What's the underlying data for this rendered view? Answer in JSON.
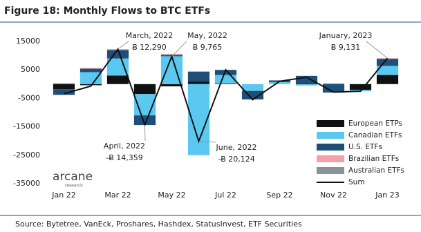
{
  "chart_data": {
    "type": "stacked-bar-line",
    "title": "Figure 18: Monthly Flows to BTC ETFs",
    "source": "Source: Bytetree, VanEck, Proshares, Hashdex, StatusInvest, ETF Securities",
    "logo": {
      "name": "arcane",
      "subtitle": "research"
    },
    "categories": [
      "Jan 22",
      null,
      "Mar 22",
      null,
      "May 22",
      null,
      "Jul 22",
      null,
      "Sep 22",
      null,
      "Nov 22",
      null,
      "Jan 23"
    ],
    "ylim": [
      -36460,
      18640
    ],
    "yticks": [
      -35000,
      -25000,
      -15000,
      -5000,
      5000,
      15000
    ],
    "series": [
      {
        "name": "European ETPs",
        "color": "#111111",
        "values": [
          -1800,
          -400,
          3000,
          -3500,
          -800,
          900,
          200,
          0,
          0,
          400,
          0,
          -2000,
          3200
        ]
      },
      {
        "name": "Canadian ETFs",
        "color": "#5bc8f0",
        "values": [
          400,
          4200,
          6000,
          -7500,
          9800,
          -25000,
          3000,
          -2400,
          700,
          -500,
          300,
          -500,
          3200
        ]
      },
      {
        "name": "U.S. ETFs",
        "color": "#1f4e79",
        "values": [
          -2000,
          1200,
          3000,
          -3400,
          400,
          3500,
          1800,
          -3000,
          600,
          2500,
          -3000,
          0,
          2500
        ]
      },
      {
        "name": "Brazilian ETFs",
        "color": "#f4a0a8",
        "values": [
          0,
          300,
          300,
          0,
          200,
          0,
          0,
          0,
          0,
          0,
          0,
          0,
          200
        ]
      },
      {
        "name": "Australian ETFs",
        "color": "#8a9299",
        "values": [
          0,
          0,
          0,
          0,
          200,
          0,
          0,
          0,
          0,
          0,
          0,
          0,
          0
        ]
      },
      {
        "name": "Sum",
        "color": "#111111",
        "type": "line",
        "values": [
          -3400,
          -700,
          12290,
          -14359,
          9765,
          -20124,
          5000,
          -5500,
          1000,
          2400,
          -2800,
          -2500,
          9131
        ]
      }
    ],
    "annotations": [
      {
        "date": "March, 2022",
        "amount": "Ƀ 12,290",
        "index": 2
      },
      {
        "date": "April, 2022",
        "amount": "-Ƀ 14,359",
        "index": 3
      },
      {
        "date": "May, 2022",
        "amount": "Ƀ 9,765",
        "index": 4
      },
      {
        "date": "June, 2022",
        "amount": "-Ƀ 20,124",
        "index": 5
      },
      {
        "date": "January, 2023",
        "amount": "Ƀ 9,131",
        "index": 12
      }
    ]
  }
}
